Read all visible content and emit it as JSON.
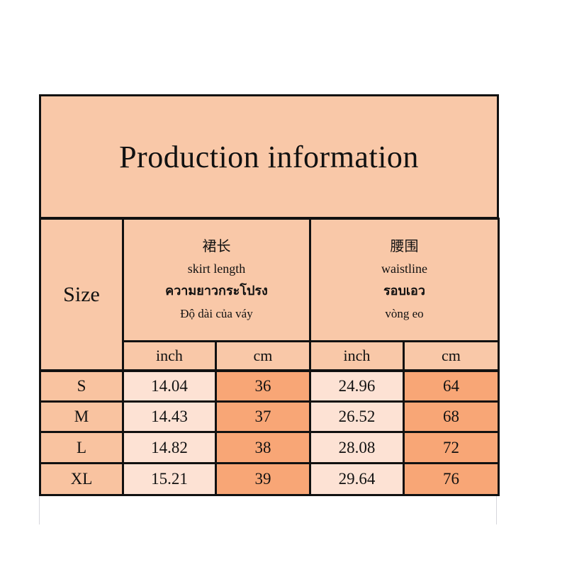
{
  "header": {
    "title": "Production information"
  },
  "table": {
    "size_header": "Size",
    "groups": [
      {
        "lines": [
          "裙长",
          "skirt length",
          "ความยาวกระโปรง",
          "Độ dài của váy"
        ]
      },
      {
        "lines": [
          "腰围",
          "waistline",
          "รอบเอว",
          "vòng eo"
        ]
      }
    ],
    "units": [
      "inch",
      "cm",
      "inch",
      "cm"
    ],
    "rows": [
      [
        "S",
        "14.04",
        "36",
        "24.96",
        "64"
      ],
      [
        "M",
        "14.43",
        "37",
        "26.52",
        "68"
      ],
      [
        "L",
        "14.82",
        "38",
        "28.08",
        "72"
      ],
      [
        "XL",
        "15.21",
        "39",
        "29.64",
        "76"
      ]
    ]
  }
}
